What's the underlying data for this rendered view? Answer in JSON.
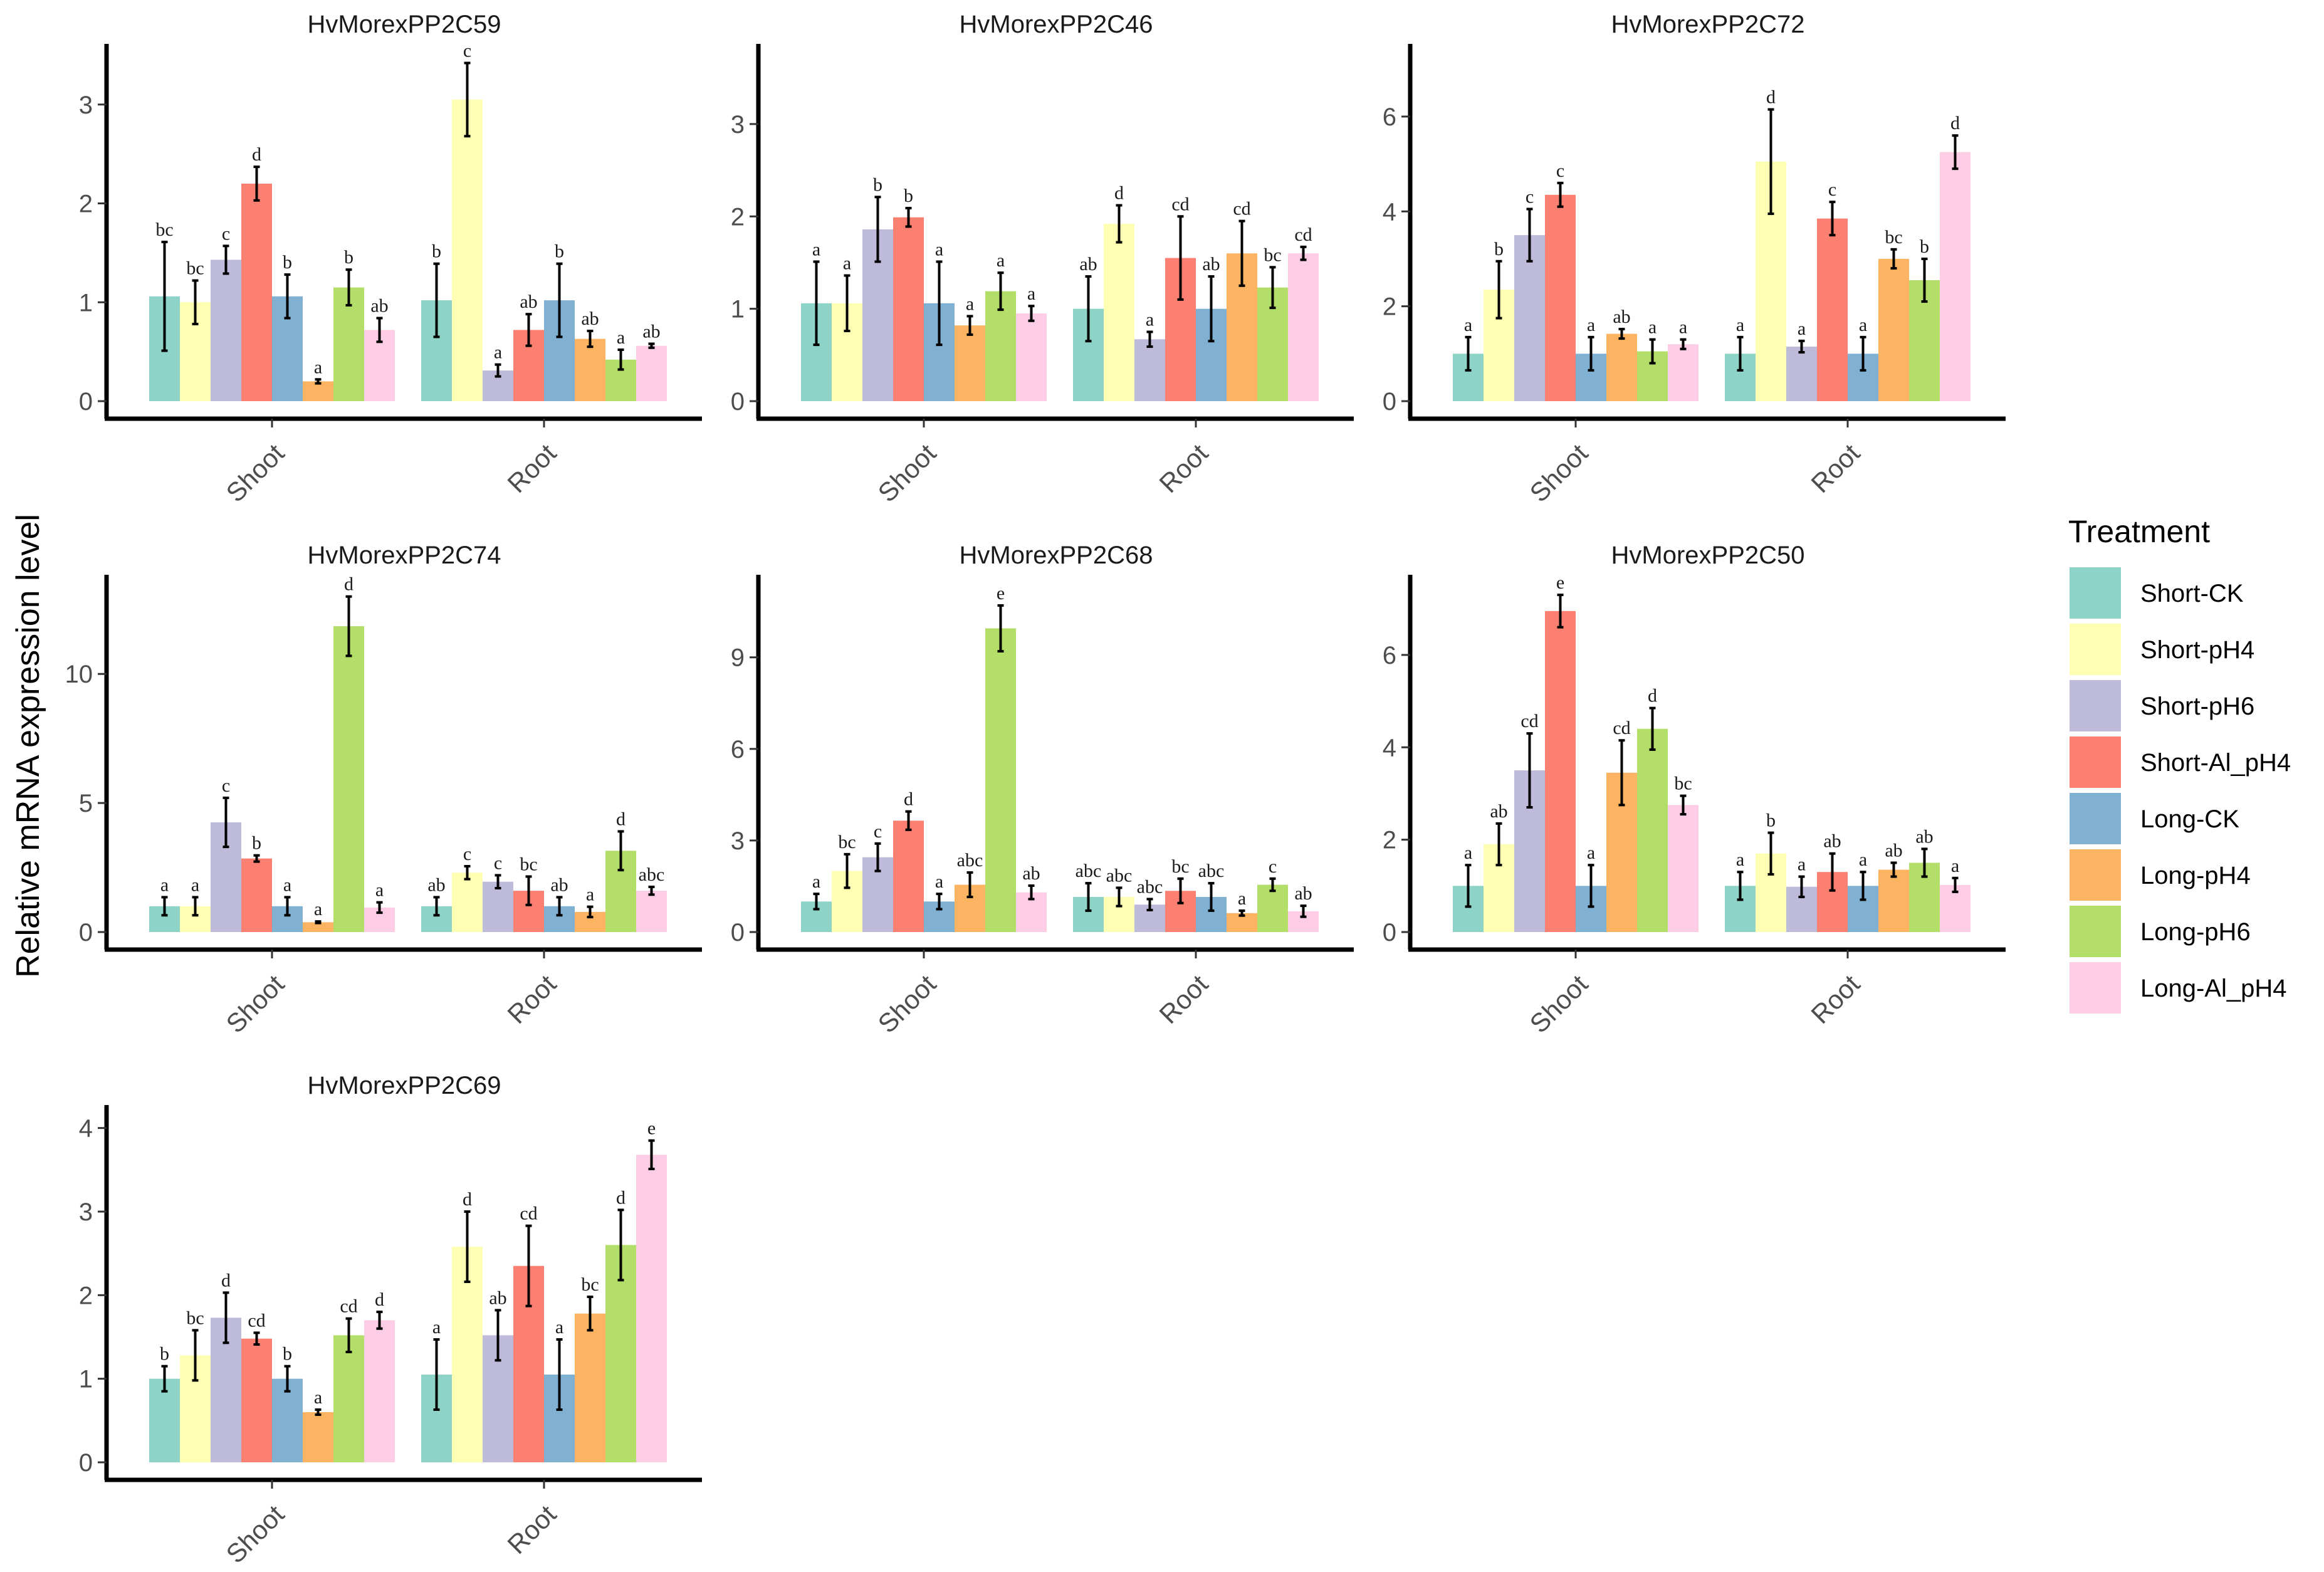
{
  "figure": {
    "ylabel": "Relative mRNA expression level",
    "legend_title": "Treatment"
  },
  "treatments": [
    {
      "name": "Short-CK",
      "color": "#8DD3C7"
    },
    {
      "name": "Short-pH4",
      "color": "#FFFFB3"
    },
    {
      "name": "Short-pH6",
      "color": "#BEBADA"
    },
    {
      "name": "Short-Al_pH4",
      "color": "#FB8072"
    },
    {
      "name": "Long-CK",
      "color": "#80B1D3"
    },
    {
      "name": "Long-pH4",
      "color": "#FDB462"
    },
    {
      "name": "Long-pH6",
      "color": "#B3DE69"
    },
    {
      "name": "Long-Al_pH4",
      "color": "#FCCDE5"
    }
  ],
  "chart_data": [
    {
      "type": "bar",
      "title": "HvMorexPP2C59",
      "categories": [
        "Shoot",
        "Root"
      ],
      "ylim": [
        0,
        3.55
      ],
      "yticks": [
        0,
        1,
        2,
        3
      ],
      "series": [
        {
          "name": "Short-CK",
          "values": [
            1.06,
            1.02
          ],
          "errors": [
            0.55,
            0.37
          ],
          "labels": [
            "bc",
            "b"
          ]
        },
        {
          "name": "Short-pH4",
          "values": [
            1.0,
            3.05
          ],
          "errors": [
            0.22,
            0.37
          ],
          "labels": [
            "bc",
            "c"
          ]
        },
        {
          "name": "Short-pH6",
          "values": [
            1.43,
            0.31
          ],
          "errors": [
            0.14,
            0.06
          ],
          "labels": [
            "c",
            "a"
          ]
        },
        {
          "name": "Short-Al_pH4",
          "values": [
            2.2,
            0.72
          ],
          "errors": [
            0.17,
            0.16
          ],
          "labels": [
            "d",
            "ab"
          ]
        },
        {
          "name": "Long-CK",
          "values": [
            1.06,
            1.02
          ],
          "errors": [
            0.22,
            0.37
          ],
          "labels": [
            "b",
            "b"
          ]
        },
        {
          "name": "Long-pH4",
          "values": [
            0.2,
            0.63
          ],
          "errors": [
            0.02,
            0.08
          ],
          "labels": [
            "a",
            "ab"
          ]
        },
        {
          "name": "Long-pH6",
          "values": [
            1.15,
            0.42
          ],
          "errors": [
            0.18,
            0.1
          ],
          "labels": [
            "b",
            "a"
          ]
        },
        {
          "name": "Long-Al_pH4",
          "values": [
            0.72,
            0.56
          ],
          "errors": [
            0.12,
            0.02
          ],
          "labels": [
            "ab",
            "ab"
          ]
        }
      ]
    },
    {
      "type": "bar",
      "title": "HvMorexPP2C46",
      "categories": [
        "Shoot",
        "Root"
      ],
      "ylim": [
        0,
        3.8
      ],
      "yticks": [
        0,
        1,
        2,
        3
      ],
      "series": [
        {
          "name": "Short-CK",
          "values": [
            1.06,
            1.0
          ],
          "errors": [
            0.45,
            0.35
          ],
          "labels": [
            "a",
            "ab"
          ]
        },
        {
          "name": "Short-pH4",
          "values": [
            1.06,
            1.92
          ],
          "errors": [
            0.3,
            0.2
          ],
          "labels": [
            "a",
            "d"
          ]
        },
        {
          "name": "Short-pH6",
          "values": [
            1.86,
            0.67
          ],
          "errors": [
            0.35,
            0.08
          ],
          "labels": [
            "b",
            "a"
          ]
        },
        {
          "name": "Short-Al_pH4",
          "values": [
            1.99,
            1.55
          ],
          "errors": [
            0.1,
            0.45
          ],
          "labels": [
            "b",
            "cd"
          ]
        },
        {
          "name": "Long-CK",
          "values": [
            1.06,
            1.0
          ],
          "errors": [
            0.45,
            0.35
          ],
          "labels": [
            "a",
            "ab"
          ]
        },
        {
          "name": "Long-pH4",
          "values": [
            0.82,
            1.6
          ],
          "errors": [
            0.1,
            0.35
          ],
          "labels": [
            "a",
            "cd"
          ]
        },
        {
          "name": "Long-pH6",
          "values": [
            1.19,
            1.23
          ],
          "errors": [
            0.2,
            0.22
          ],
          "labels": [
            "a",
            "bc"
          ]
        },
        {
          "name": "Long-Al_pH4",
          "values": [
            0.95,
            1.6
          ],
          "errors": [
            0.08,
            0.07
          ],
          "labels": [
            "a",
            "cd"
          ]
        }
      ]
    },
    {
      "type": "bar",
      "title": "HvMorexPP2C72",
      "categories": [
        "Shoot",
        "Root"
      ],
      "ylim": [
        0,
        7.4
      ],
      "yticks": [
        0,
        2,
        4,
        6
      ],
      "series": [
        {
          "name": "Short-CK",
          "values": [
            1.0,
            1.0
          ],
          "errors": [
            0.35,
            0.35
          ],
          "labels": [
            "a",
            "a"
          ]
        },
        {
          "name": "Short-pH4",
          "values": [
            2.35,
            5.05
          ],
          "errors": [
            0.6,
            1.1
          ],
          "labels": [
            "b",
            "d"
          ]
        },
        {
          "name": "Short-pH6",
          "values": [
            3.5,
            1.15
          ],
          "errors": [
            0.55,
            0.12
          ],
          "labels": [
            "c",
            "a"
          ]
        },
        {
          "name": "Short-Al_pH4",
          "values": [
            4.35,
            3.85
          ],
          "errors": [
            0.25,
            0.35
          ],
          "labels": [
            "c",
            "c"
          ]
        },
        {
          "name": "Long-CK",
          "values": [
            1.0,
            1.0
          ],
          "errors": [
            0.35,
            0.35
          ],
          "labels": [
            "a",
            "a"
          ]
        },
        {
          "name": "Long-pH4",
          "values": [
            1.42,
            3.0
          ],
          "errors": [
            0.1,
            0.2
          ],
          "labels": [
            "ab",
            "bc"
          ]
        },
        {
          "name": "Long-pH6",
          "values": [
            1.05,
            2.55
          ],
          "errors": [
            0.25,
            0.45
          ],
          "labels": [
            "a",
            "b"
          ]
        },
        {
          "name": "Long-Al_pH4",
          "values": [
            1.2,
            5.25
          ],
          "errors": [
            0.1,
            0.35
          ],
          "labels": [
            "a",
            "d"
          ]
        }
      ]
    },
    {
      "type": "bar",
      "title": "HvMorexPP2C74",
      "categories": [
        "Shoot",
        "Root"
      ],
      "ylim": [
        0,
        13.6
      ],
      "yticks": [
        0,
        5,
        10
      ],
      "series": [
        {
          "name": "Short-CK",
          "values": [
            1.0,
            1.0
          ],
          "errors": [
            0.35,
            0.35
          ],
          "labels": [
            "a",
            "ab"
          ]
        },
        {
          "name": "Short-pH4",
          "values": [
            1.0,
            2.3
          ],
          "errors": [
            0.35,
            0.25
          ],
          "labels": [
            "a",
            "c"
          ]
        },
        {
          "name": "Short-pH6",
          "values": [
            4.25,
            1.95
          ],
          "errors": [
            0.95,
            0.25
          ],
          "labels": [
            "c",
            "c"
          ]
        },
        {
          "name": "Short-Al_pH4",
          "values": [
            2.85,
            1.6
          ],
          "errors": [
            0.12,
            0.55
          ],
          "labels": [
            "b",
            "bc"
          ]
        },
        {
          "name": "Long-CK",
          "values": [
            1.0,
            1.0
          ],
          "errors": [
            0.35,
            0.35
          ],
          "labels": [
            "a",
            "ab"
          ]
        },
        {
          "name": "Long-pH4",
          "values": [
            0.38,
            0.78
          ],
          "errors": [
            0.03,
            0.2
          ],
          "labels": [
            "a",
            "a"
          ]
        },
        {
          "name": "Long-pH6",
          "values": [
            11.85,
            3.15
          ],
          "errors": [
            1.15,
            0.75
          ],
          "labels": [
            "d",
            "d"
          ]
        },
        {
          "name": "Long-Al_pH4",
          "values": [
            0.95,
            1.6
          ],
          "errors": [
            0.2,
            0.15
          ],
          "labels": [
            "a",
            "abc"
          ]
        }
      ]
    },
    {
      "type": "bar",
      "title": "HvMorexPP2C68",
      "categories": [
        "Shoot",
        "Root"
      ],
      "ylim": [
        0,
        11.5
      ],
      "yticks": [
        0,
        3,
        6,
        9
      ],
      "series": [
        {
          "name": "Short-CK",
          "values": [
            1.0,
            1.15
          ],
          "errors": [
            0.25,
            0.45
          ],
          "labels": [
            "a",
            "abc"
          ]
        },
        {
          "name": "Short-pH4",
          "values": [
            2.0,
            1.15
          ],
          "errors": [
            0.55,
            0.3
          ],
          "labels": [
            "bc",
            "abc"
          ]
        },
        {
          "name": "Short-pH6",
          "values": [
            2.45,
            0.9
          ],
          "errors": [
            0.45,
            0.18
          ],
          "labels": [
            "c",
            "abc"
          ]
        },
        {
          "name": "Short-Al_pH4",
          "values": [
            3.65,
            1.35
          ],
          "errors": [
            0.3,
            0.4
          ],
          "labels": [
            "d",
            "bc"
          ]
        },
        {
          "name": "Long-CK",
          "values": [
            1.0,
            1.15
          ],
          "errors": [
            0.25,
            0.45
          ],
          "labels": [
            "a",
            "abc"
          ]
        },
        {
          "name": "Long-pH4",
          "values": [
            1.55,
            0.62
          ],
          "errors": [
            0.4,
            0.08
          ],
          "labels": [
            "abc",
            "a"
          ]
        },
        {
          "name": "Long-pH6",
          "values": [
            9.95,
            1.55
          ],
          "errors": [
            0.75,
            0.2
          ],
          "labels": [
            "e",
            "c"
          ]
        },
        {
          "name": "Long-Al_pH4",
          "values": [
            1.3,
            0.68
          ],
          "errors": [
            0.22,
            0.18
          ],
          "labels": [
            "ab",
            "ab"
          ]
        }
      ]
    },
    {
      "type": "bar",
      "title": "HvMorexPP2C50",
      "categories": [
        "Shoot",
        "Root"
      ],
      "ylim": [
        0,
        7.6
      ],
      "yticks": [
        0,
        2,
        4,
        6
      ],
      "series": [
        {
          "name": "Short-CK",
          "values": [
            1.0,
            1.0
          ],
          "errors": [
            0.45,
            0.3
          ],
          "labels": [
            "a",
            "a"
          ]
        },
        {
          "name": "Short-pH4",
          "values": [
            1.9,
            1.7
          ],
          "errors": [
            0.45,
            0.45
          ],
          "labels": [
            "ab",
            "b"
          ]
        },
        {
          "name": "Short-pH6",
          "values": [
            3.5,
            0.98
          ],
          "errors": [
            0.8,
            0.22
          ],
          "labels": [
            "cd",
            "a"
          ]
        },
        {
          "name": "Short-Al_pH4",
          "values": [
            6.95,
            1.3
          ],
          "errors": [
            0.35,
            0.4
          ],
          "labels": [
            "e",
            "ab"
          ]
        },
        {
          "name": "Long-CK",
          "values": [
            1.0,
            1.0
          ],
          "errors": [
            0.45,
            0.3
          ],
          "labels": [
            "a",
            "a"
          ]
        },
        {
          "name": "Long-pH4",
          "values": [
            3.45,
            1.35
          ],
          "errors": [
            0.7,
            0.15
          ],
          "labels": [
            "cd",
            "ab"
          ]
        },
        {
          "name": "Long-pH6",
          "values": [
            4.4,
            1.5
          ],
          "errors": [
            0.45,
            0.3
          ],
          "labels": [
            "d",
            "ab"
          ]
        },
        {
          "name": "Long-Al_pH4",
          "values": [
            2.75,
            1.02
          ],
          "errors": [
            0.2,
            0.15
          ],
          "labels": [
            "bc",
            "a"
          ]
        }
      ]
    },
    {
      "type": "bar",
      "title": "HvMorexPP2C69",
      "categories": [
        "Shoot",
        "Root"
      ],
      "ylim": [
        0,
        4.2
      ],
      "yticks": [
        0,
        1,
        2,
        3,
        4
      ],
      "series": [
        {
          "name": "Short-CK",
          "values": [
            1.0,
            1.05
          ],
          "errors": [
            0.15,
            0.42
          ],
          "labels": [
            "b",
            "a"
          ]
        },
        {
          "name": "Short-pH4",
          "values": [
            1.28,
            2.58
          ],
          "errors": [
            0.3,
            0.42
          ],
          "labels": [
            "bc",
            "d"
          ]
        },
        {
          "name": "Short-pH6",
          "values": [
            1.73,
            1.52
          ],
          "errors": [
            0.3,
            0.3
          ],
          "labels": [
            "d",
            "ab"
          ]
        },
        {
          "name": "Short-Al_pH4",
          "values": [
            1.48,
            2.35
          ],
          "errors": [
            0.07,
            0.48
          ],
          "labels": [
            "cd",
            "cd"
          ]
        },
        {
          "name": "Long-CK",
          "values": [
            1.0,
            1.05
          ],
          "errors": [
            0.15,
            0.42
          ],
          "labels": [
            "b",
            "a"
          ]
        },
        {
          "name": "Long-pH4",
          "values": [
            0.6,
            1.78
          ],
          "errors": [
            0.03,
            0.2
          ],
          "labels": [
            "a",
            "bc"
          ]
        },
        {
          "name": "Long-pH6",
          "values": [
            1.52,
            2.6
          ],
          "errors": [
            0.2,
            0.42
          ],
          "labels": [
            "cd",
            "d"
          ]
        },
        {
          "name": "Long-Al_pH4",
          "values": [
            1.7,
            3.68
          ],
          "errors": [
            0.1,
            0.17
          ],
          "labels": [
            "d",
            "e"
          ]
        }
      ]
    }
  ]
}
